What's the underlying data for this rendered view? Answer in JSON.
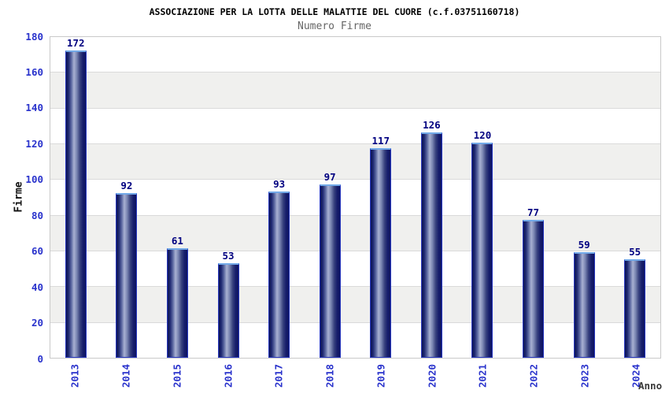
{
  "header": {
    "title": "ASSOCIAZIONE PER LA LOTTA DELLE MALATTIE DEL CUORE (c.f.03751160718)",
    "subtitle": "Numero Firme"
  },
  "chart_data": {
    "type": "bar",
    "title": "ASSOCIAZIONE PER LA LOTTA DELLE MALATTIE DEL CUORE (c.f.03751160718)",
    "subtitle": "Numero Firme",
    "categories": [
      "2013",
      "2014",
      "2015",
      "2016",
      "2017",
      "2018",
      "2019",
      "2020",
      "2021",
      "2022",
      "2023",
      "2024"
    ],
    "values": [
      172,
      92,
      61,
      53,
      93,
      97,
      117,
      126,
      120,
      77,
      59,
      55
    ],
    "xlabel": "Anno",
    "ylabel": "Firme",
    "ylim": [
      0,
      180
    ],
    "y_ticks": [
      0,
      20,
      40,
      60,
      80,
      100,
      120,
      140,
      160,
      180
    ],
    "grid": "horizontal gridlines every 20 with alternating white/gray bands",
    "legend": "none"
  },
  "colors": {
    "tick_label_blue": "#2a33cc",
    "value_label_navy": "#000080",
    "bar_border_blue": "#2838c0",
    "bar_top_highlight_blue": "#72a9e8",
    "bar_gradient_dark": "#0d1455",
    "bar_gradient_light": "#a8b1d2",
    "band_shaded_gray": "#f0f0ee",
    "gridline_gray": "#dadada",
    "plot_border_gray": "#c9c9c9",
    "title_black": "#000000",
    "subtitle_gray": "#666666",
    "xlabel_dark_gray": "#3a3a3a",
    "ylabel_black": "#111111",
    "background": "#ffffff"
  }
}
